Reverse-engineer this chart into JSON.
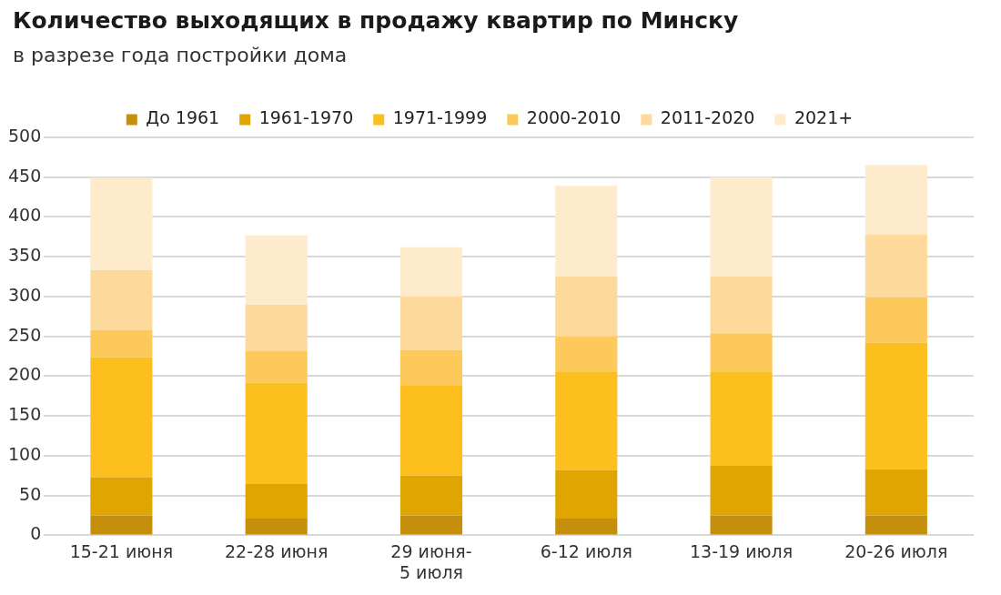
{
  "chart_data": {
    "type": "bar",
    "title": "Количество выходящих в продажу квартир по Минску",
    "subtitle": "в разрезе года постройки дома",
    "categories": [
      "15-21 июня",
      "22-28 июня",
      "29 июня-\n5 июля",
      "6-12 июля",
      "13-19 июля",
      "20-26 июля"
    ],
    "stacked": true,
    "legend": "top",
    "grid": "y",
    "ylim": [
      0,
      500
    ],
    "yticks": [
      0,
      50,
      100,
      150,
      200,
      250,
      300,
      350,
      400,
      450,
      500
    ],
    "series": [
      {
        "name": "До 1961",
        "color": "#c58f0b",
        "values": [
          25,
          21,
          25,
          21,
          25,
          25
        ]
      },
      {
        "name": "1961-1970",
        "color": "#e0a500",
        "values": [
          48,
          44,
          50,
          61,
          63,
          58
        ]
      },
      {
        "name": "1971-1999",
        "color": "#fdbf1e",
        "values": [
          151,
          127,
          113,
          124,
          118,
          159
        ]
      },
      {
        "name": "2000-2010",
        "color": "#fec95b",
        "values": [
          34,
          40,
          45,
          44,
          48,
          57
        ]
      },
      {
        "name": "2011-2020",
        "color": "#fed99c",
        "values": [
          75,
          58,
          67,
          75,
          71,
          79
        ]
      },
      {
        "name": "2021+",
        "color": "#feebcc",
        "values": [
          116,
          87,
          62,
          114,
          125,
          87
        ]
      }
    ]
  }
}
